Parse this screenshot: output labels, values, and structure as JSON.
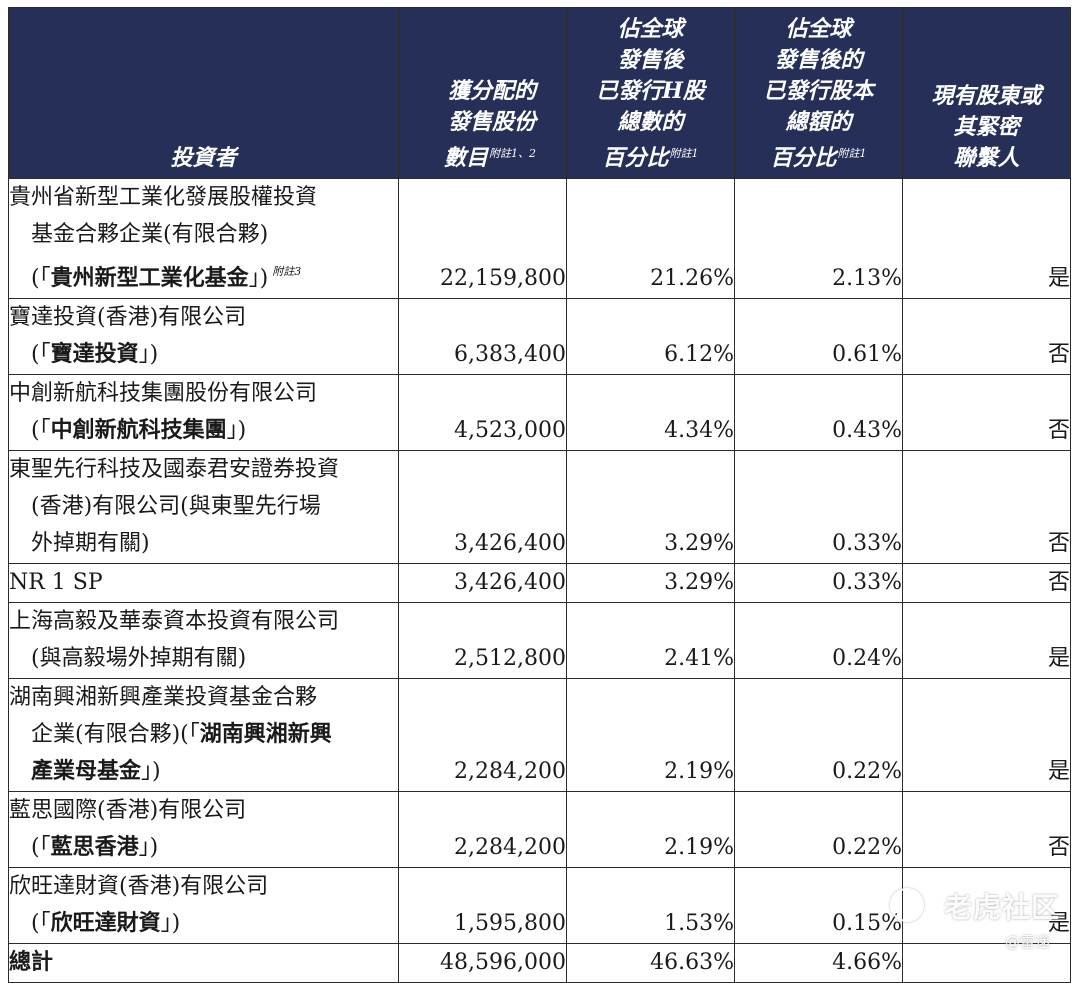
{
  "table": {
    "headers": {
      "investor": "投資者",
      "shares": [
        "獲分配的",
        "發售股份",
        "數目"
      ],
      "shares_note": "附註1、2",
      "pct_h": [
        "佔全球",
        "發售後",
        "已發行H股",
        "總數的",
        "百分比"
      ],
      "pct_h_note": "附註1",
      "pct_total": [
        "佔全球",
        "發售後的",
        "已發行股本",
        "總額的",
        "百分比"
      ],
      "pct_total_note": "附註1",
      "related": [
        "現有股東或",
        "其緊密",
        "聯繫人"
      ]
    },
    "rows": [
      {
        "investor": [
          {
            "text": "貴州省新型工業化發展股權投資"
          },
          {
            "text": "基金合夥企業(有限合夥)",
            "indent": true
          },
          {
            "pre": "(「",
            "bold": "貴州新型工業化基金",
            "post": "」)",
            "note": "附註3",
            "indent": true
          }
        ],
        "shares": "22,159,800",
        "pct_h": "21.26%",
        "pct_total": "2.13%",
        "related": "是"
      },
      {
        "investor": [
          {
            "text": "寶達投資(香港)有限公司"
          },
          {
            "pre": "(「",
            "bold": "寶達投資",
            "post": "」)",
            "indent": true
          }
        ],
        "shares": "6,383,400",
        "pct_h": "6.12%",
        "pct_total": "0.61%",
        "related": "否"
      },
      {
        "investor": [
          {
            "text": "中創新航科技集團股份有限公司"
          },
          {
            "pre": "(「",
            "bold": "中創新航科技集團",
            "post": "」)",
            "indent": true
          }
        ],
        "shares": "4,523,000",
        "pct_h": "4.34%",
        "pct_total": "0.43%",
        "related": "否"
      },
      {
        "investor": [
          {
            "text": "東聖先行科技及國泰君安證券投資"
          },
          {
            "text": "(香港)有限公司(與東聖先行場",
            "indent": true
          },
          {
            "text": "外掉期有關)",
            "indent": true
          }
        ],
        "shares": "3,426,400",
        "pct_h": "3.29%",
        "pct_total": "0.33%",
        "related": "否"
      },
      {
        "investor": [
          {
            "text": "NR 1 SP"
          }
        ],
        "shares": "3,426,400",
        "pct_h": "3.29%",
        "pct_total": "0.33%",
        "related": "否"
      },
      {
        "investor": [
          {
            "text": "上海高毅及華泰資本投資有限公司"
          },
          {
            "text": "(與高毅場外掉期有關)",
            "indent": true
          }
        ],
        "shares": "2,512,800",
        "pct_h": "2.41%",
        "pct_total": "0.24%",
        "related": "是"
      },
      {
        "investor": [
          {
            "text": "湖南興湘新興產業投資基金合夥"
          },
          {
            "pre": "企業(有限合夥)(「",
            "bold": "湖南興湘新興",
            "indent": true
          },
          {
            "bold": "產業母基金",
            "post": "」)",
            "indent": true
          }
        ],
        "shares": "2,284,200",
        "pct_h": "2.19%",
        "pct_total": "0.22%",
        "related": "是"
      },
      {
        "investor": [
          {
            "text": "藍思國際(香港)有限公司"
          },
          {
            "pre": "(「",
            "bold": "藍思香港",
            "post": "」)",
            "indent": true
          }
        ],
        "shares": "2,284,200",
        "pct_h": "2.19%",
        "pct_total": "0.22%",
        "related": "否"
      },
      {
        "investor": [
          {
            "text": "欣旺達財資(香港)有限公司"
          },
          {
            "pre": "(「",
            "bold": "欣旺達財資",
            "post": "」)",
            "indent": true
          }
        ],
        "shares": "1,595,800",
        "pct_h": "1.53%",
        "pct_total": "0.15%",
        "related": "是"
      }
    ],
    "total": {
      "label": "總計",
      "shares": "48,596,000",
      "pct_h": "46.63%",
      "pct_total": "4.66%",
      "related": ""
    }
  },
  "watermark": {
    "main": "老虎社区",
    "sub": "@雷递"
  }
}
